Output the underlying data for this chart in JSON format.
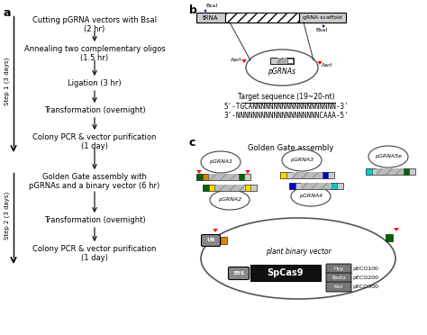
{
  "bg_color": "#ffffff",
  "panel_a": {
    "label": "a",
    "steps": [
      "Cutting pGRNA vectors with BsaI\n(2 hr)",
      "Annealing two complementary oligos\n(1.5 hr)",
      "Ligation (3 hr)",
      "Transformation (overnight)",
      "Colony PCR & vector purification\n(1 day)",
      "Golden Gate assembly with\npGRNAs and a binary vector (6 hr)",
      "Transformation (overnight)",
      "Colony PCR & vector purification\n(1 day)"
    ],
    "step1_label": "Step 1 (3 days)",
    "step2_label": "Step 2 (3 days)"
  },
  "panel_b": {
    "label": "b",
    "target_title": "Target sequence (19~20-nt)",
    "target_seq1": "5'-TGCANNNNNNNNNNNNNNNNNNNN-3'",
    "target_seq2": "3'-NNNNNNNNNNNNNNNNNNNNCAAA-5'"
  },
  "panel_c": {
    "label": "c",
    "title": "Golden Gate assembly",
    "markers": [
      {
        "label": "Hyg",
        "eco": "pECO100"
      },
      {
        "label": "Basta",
        "eco": "pECO200"
      },
      {
        "label": "Kan",
        "eco": "pECO300"
      }
    ]
  }
}
